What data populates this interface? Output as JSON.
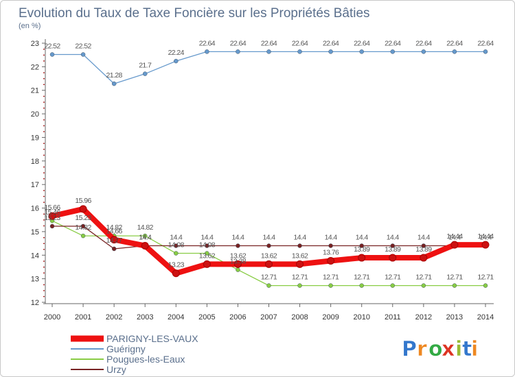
{
  "chart_data": {
    "type": "line",
    "title": "Evolution du Taux de Taxe Foncière sur les Propriétés Bâties",
    "subtitle": "(en %)",
    "xlabel": "",
    "ylabel": "",
    "x": [
      "2000",
      "2001",
      "2002",
      "2003",
      "2004",
      "2005",
      "2006",
      "2007",
      "2008",
      "2009",
      "2010",
      "2011",
      "2012",
      "2013",
      "2014"
    ],
    "ylim": [
      12,
      23
    ],
    "yticks": [
      "12",
      "13",
      "14",
      "15",
      "16",
      "17",
      "18",
      "19",
      "20",
      "21",
      "22",
      "23"
    ],
    "grid": false,
    "legend_position": "bottom-left",
    "series": [
      {
        "name": "PARIGNY-LES-VAUX",
        "color": "#ee1111",
        "values": [
          15.66,
          15.96,
          14.66,
          14.4,
          13.23,
          13.62,
          13.62,
          13.62,
          13.62,
          13.76,
          13.89,
          13.89,
          13.89,
          14.44,
          14.44
        ],
        "labels": [
          "15.66",
          "15.96",
          "14.66",
          "14.4",
          "13.23",
          "13.62",
          "13.62",
          "13.62",
          "13.62",
          "13.76",
          "13.89",
          "13.89",
          "13.89",
          "14.44",
          "14.44"
        ]
      },
      {
        "name": "Guérigny",
        "color": "#6699cc",
        "values": [
          22.52,
          22.52,
          21.28,
          21.7,
          22.24,
          22.64,
          22.64,
          22.64,
          22.64,
          22.64,
          22.64,
          22.64,
          22.64,
          22.64,
          22.64
        ],
        "labels": [
          "22.52",
          "22.52",
          "21.28",
          "21.7",
          "22.24",
          "22.64",
          "22.64",
          "22.64",
          "22.64",
          "22.64",
          "22.64",
          "22.64",
          "22.64",
          "22.64",
          "22.64"
        ]
      },
      {
        "name": "Pougues-les-Eaux",
        "color": "#88cc44",
        "values": [
          15.46,
          14.82,
          14.82,
          14.82,
          14.08,
          14.08,
          13.38,
          12.71,
          12.71,
          12.71,
          12.71,
          12.71,
          12.71,
          12.71,
          12.71
        ],
        "labels": [
          "15.46",
          "14.82",
          "14.82",
          "14.82",
          "14.08",
          "14.08",
          "13.38",
          "12.71",
          "12.71",
          "12.71",
          "12.71",
          "12.71",
          "12.71",
          "12.71",
          "12.71"
        ]
      },
      {
        "name": "Urzy",
        "color": "#772222",
        "values": [
          15.23,
          15.23,
          14.27,
          14.4,
          14.4,
          14.4,
          14.4,
          14.4,
          14.4,
          14.4,
          14.4,
          14.4,
          14.4,
          14.4,
          14.4
        ],
        "labels": [
          "15.23",
          "15.23",
          "14.27",
          "14.4",
          "14.4",
          "14.4",
          "14.4",
          "14.4",
          "14.4",
          "14.4",
          "14.4",
          "14.4",
          "14.4",
          "14.4",
          "14.4"
        ]
      }
    ]
  },
  "logo": {
    "text": "Proxiti",
    "letter_colors": [
      "#3377cc",
      "#ee8822",
      "#33aa44",
      "#dd3322",
      "#99bb33",
      "#3377cc",
      "#ee8822"
    ]
  }
}
